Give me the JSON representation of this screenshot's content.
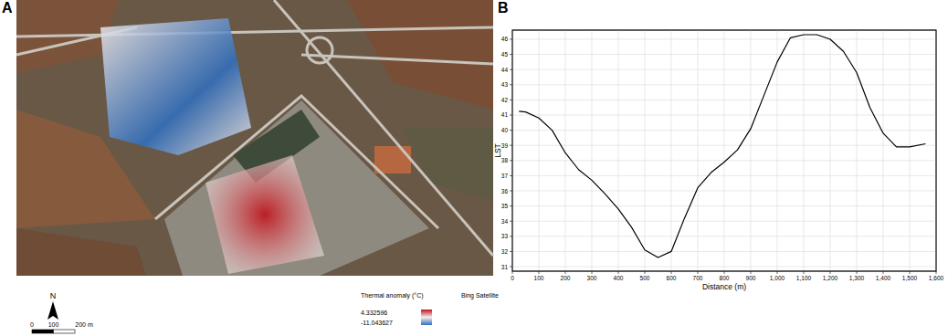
{
  "map": {
    "panel_label": "A",
    "north": "N",
    "scale_bar": {
      "ticks": [
        0,
        100,
        {
          "value": 200,
          "label": "200 m"
        }
      ]
    },
    "legend_title": "Thermal anomaly (°C)",
    "basemap": "Bing Satellite",
    "colorbar": {
      "max": 4.332596,
      "min": -11.043627,
      "colors": [
        "#c0121a",
        "#f4eeee",
        "#2f6fc0"
      ]
    }
  },
  "chart_data": {
    "type": "line",
    "panel_label": "B",
    "x_label": "Distance (m)",
    "y_label": "LST",
    "x": [
      25,
      50,
      100,
      150,
      200,
      250,
      300,
      350,
      400,
      450,
      500,
      550,
      600,
      650,
      700,
      750,
      800,
      850,
      900,
      950,
      1000,
      1050,
      1100,
      1150,
      1200,
      1250,
      1300,
      1350,
      1400,
      1450,
      1500,
      1560
    ],
    "values": [
      41.25,
      41.2,
      40.8,
      40.0,
      38.5,
      37.4,
      36.7,
      35.8,
      34.8,
      33.6,
      32.1,
      31.6,
      32.0,
      34.2,
      36.2,
      37.2,
      37.9,
      38.7,
      40.1,
      42.3,
      44.5,
      46.1,
      46.3,
      46.3,
      46.0,
      45.2,
      43.8,
      41.5,
      39.8,
      38.9,
      38.9,
      39.1
    ],
    "color": "#000000",
    "xlim": [
      0,
      1600
    ],
    "ylim": [
      30.7,
      46.6
    ],
    "xticks": [
      0,
      100,
      200,
      300,
      400,
      500,
      600,
      700,
      800,
      900,
      {
        "value": 1000,
        "label": "1,000"
      },
      {
        "value": 1100,
        "label": "1,100"
      },
      {
        "value": 1200,
        "label": "1,200"
      },
      {
        "value": 1300,
        "label": "1,300"
      },
      {
        "value": 1400,
        "label": "1,400"
      },
      {
        "value": 1500,
        "label": "1,500"
      },
      {
        "value": 1600,
        "label": "1,600"
      }
    ],
    "yticks": [
      31,
      32,
      33,
      34,
      35,
      36,
      37,
      38,
      39,
      40,
      41,
      42,
      43,
      44,
      45,
      46
    ],
    "grid": true
  }
}
